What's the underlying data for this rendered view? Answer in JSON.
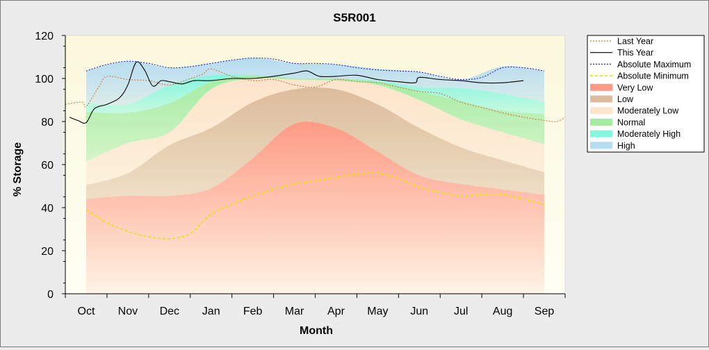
{
  "chart_data": {
    "type": "area",
    "title": "S5R001",
    "xlabel": "Month",
    "ylabel": "% Storage",
    "ylim": [
      0,
      120
    ],
    "yticks": [
      0,
      20,
      40,
      60,
      80,
      100,
      120
    ],
    "xlim": [
      -0.5,
      11.5
    ],
    "categories": [
      "Oct",
      "Nov",
      "Dec",
      "Jan",
      "Feb",
      "Mar",
      "Apr",
      "May",
      "Jun",
      "Jul",
      "Aug",
      "Sep"
    ],
    "grid": false,
    "legend_position": "right",
    "band_x": [
      0,
      1,
      2,
      3,
      4,
      5,
      6,
      7,
      8,
      9,
      10,
      11
    ],
    "bands": [
      {
        "name": "Very Low",
        "color": "#ff9b86",
        "lower": [
          0,
          0,
          0,
          0,
          0,
          0,
          0,
          0,
          0,
          0,
          0,
          0
        ],
        "upper": [
          44,
          45.5,
          45.5,
          49,
          63,
          79,
          77,
          66,
          55,
          51,
          48.5,
          46
        ]
      },
      {
        "name": "Low",
        "color": "#dcbc9c",
        "lower": [
          44,
          45.5,
          45.5,
          49,
          63,
          79,
          77,
          66,
          55,
          51,
          48.5,
          46
        ],
        "upper": [
          50.5,
          56,
          69,
          77,
          89,
          95,
          95,
          88,
          77,
          68,
          62,
          56.5
        ]
      },
      {
        "name": "Moderately Low",
        "color": "#fde4cc",
        "lower": [
          50.5,
          56,
          69,
          77,
          89,
          95,
          95,
          88,
          77,
          68,
          62,
          56.5
        ],
        "upper": [
          61.5,
          70,
          75,
          95,
          100,
          99.5,
          99,
          97,
          90,
          81,
          75,
          69.5
        ]
      },
      {
        "name": "Normal",
        "color": "#a4eca4",
        "lower": [
          61.5,
          70,
          75,
          95,
          100,
          99.5,
          99,
          97,
          90,
          81,
          75,
          69.5
        ],
        "upper": [
          84.5,
          84,
          88.5,
          98.5,
          101.5,
          100,
          100,
          98.5,
          94,
          89.5,
          85,
          83.5
        ]
      },
      {
        "name": "Moderately High",
        "color": "#86f6de",
        "lower": [
          84.5,
          84,
          88.5,
          98.5,
          101.5,
          100,
          100,
          98.5,
          94,
          89.5,
          85,
          83.5
        ],
        "upper": [
          88.5,
          88,
          97,
          101.5,
          101.5,
          100,
          100,
          99,
          96,
          95.5,
          93,
          89
        ]
      },
      {
        "name": "High",
        "color": "#b6dcf2",
        "lower": [
          88.5,
          88,
          97,
          101.5,
          101.5,
          100,
          100,
          99,
          96,
          95.5,
          93,
          89
        ],
        "upper": [
          103.5,
          108,
          105,
          107,
          109.5,
          107,
          106.5,
          104.5,
          103,
          99.5,
          105.5,
          103.5
        ]
      }
    ],
    "series": [
      {
        "name": "Last Year",
        "color": "#c87a40",
        "style": "dotted",
        "x": [
          -0.5,
          -0.1,
          0,
          0.3,
          0.5,
          1,
          1.5,
          2,
          2.5,
          2.8,
          3,
          3.5,
          4,
          4.5,
          5,
          5.5,
          6,
          6.5,
          7,
          7.5,
          8,
          8.5,
          9,
          9.5,
          10,
          10.5,
          11,
          11.3,
          11.5
        ],
        "y": [
          88,
          89,
          87,
          96,
          101,
          99.5,
          99,
          97,
          100,
          102,
          104.5,
          101,
          99,
          99.5,
          97,
          96,
          99.5,
          98.5,
          98,
          96,
          94,
          93,
          89,
          86.5,
          84,
          82,
          80.5,
          80,
          82
        ]
      },
      {
        "name": "This Year",
        "color": "#000000",
        "style": "solid",
        "x": [
          -0.4,
          -0.2,
          0,
          0.2,
          0.5,
          0.8,
          1,
          1.2,
          1.4,
          1.6,
          1.8,
          2,
          2.3,
          2.6,
          3,
          3.5,
          4,
          4.5,
          5,
          5.3,
          5.6,
          6,
          6.5,
          7,
          7.5,
          7.9,
          8,
          8.5,
          9,
          9.5,
          10,
          10.5
        ],
        "y": [
          82,
          80.5,
          79.5,
          86,
          88,
          91,
          97,
          107.5,
          104,
          96.5,
          99,
          98.5,
          97.5,
          99,
          99,
          100,
          100,
          101,
          102.5,
          103.5,
          101,
          101,
          101.5,
          99.5,
          98.5,
          98,
          100.5,
          99.5,
          99,
          98,
          98,
          99
        ]
      },
      {
        "name": "Absolute Maximum",
        "color": "#2222cc",
        "style": "dotted",
        "x": [
          0,
          0.5,
          1,
          1.5,
          2,
          2.5,
          3,
          3.5,
          4,
          4.5,
          5,
          5.5,
          6,
          6.5,
          7,
          7.5,
          8,
          8.5,
          9,
          9.5,
          10,
          10.5,
          11
        ],
        "y": [
          103.5,
          106.5,
          108,
          107,
          105,
          105.5,
          107,
          108.5,
          109.5,
          109,
          107,
          107,
          106.5,
          105,
          104,
          103.5,
          103,
          101,
          99.5,
          100.5,
          105,
          105,
          103.5
        ]
      },
      {
        "name": "Absolute Minimum",
        "color": "#e6e600",
        "style": "dashed",
        "x": [
          0,
          0.5,
          1,
          1.5,
          2,
          2.5,
          3,
          3.5,
          4,
          4.5,
          5,
          5.5,
          6,
          6.5,
          7,
          7.5,
          8,
          8.5,
          9,
          9.5,
          10,
          10.5,
          11
        ],
        "y": [
          39,
          33,
          29,
          26.5,
          25.5,
          28,
          37,
          41.5,
          45.5,
          48.5,
          51,
          52.5,
          54,
          55.5,
          56,
          53.5,
          49.5,
          47,
          45.5,
          46,
          46,
          44,
          41.5
        ]
      }
    ],
    "legend": [
      "Last Year",
      "This Year",
      "Absolute Maximum",
      "Absolute Minimum",
      "Very Low",
      "Low",
      "Moderately Low",
      "Normal",
      "Moderately High",
      "High"
    ],
    "colors": {
      "plot_background": "#fefde4",
      "figure_background": "#ececec"
    }
  }
}
